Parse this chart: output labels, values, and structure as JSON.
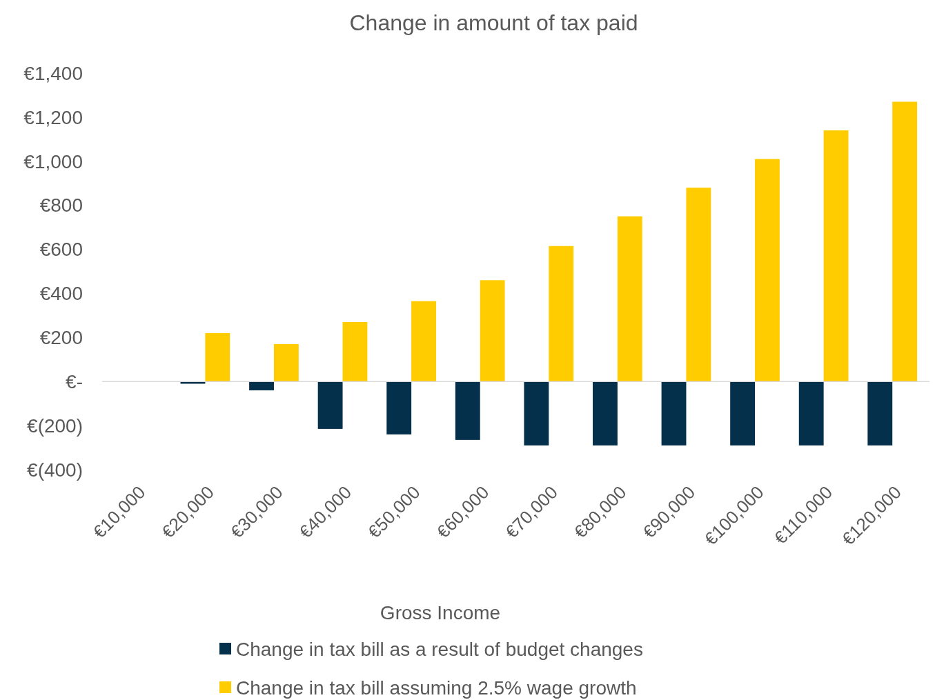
{
  "chart_data": {
    "type": "bar",
    "title": "Change in amount of tax paid",
    "xlabel": "Gross Income",
    "categories": [
      "€10,000",
      "€20,000",
      "€30,000",
      "€40,000",
      "€50,000",
      "€60,000",
      "€70,000",
      "€80,000",
      "€90,000",
      "€100,000",
      "€110,000",
      "€120,000"
    ],
    "series": [
      {
        "name": "Change in tax bill as a result of budget changes",
        "color": "#05304b",
        "values": [
          0,
          -10,
          -40,
          -215,
          -240,
          -265,
          -290,
          -290,
          -290,
          -290,
          -290,
          -290
        ]
      },
      {
        "name": "Change in tax bill assuming 2.5% wage growth",
        "color": "#ffcc00",
        "values": [
          0,
          220,
          170,
          270,
          365,
          460,
          615,
          750,
          880,
          1010,
          1140,
          1270
        ]
      }
    ],
    "ylim": [
      -400,
      1400
    ],
    "yticks": [
      {
        "value": -400,
        "label": "€(400)"
      },
      {
        "value": -200,
        "label": "€(200)"
      },
      {
        "value": 0,
        "label": "€-"
      },
      {
        "value": 200,
        "label": "€200"
      },
      {
        "value": 400,
        "label": "€400"
      },
      {
        "value": 600,
        "label": "€600"
      },
      {
        "value": 800,
        "label": "€800"
      },
      {
        "value": 1000,
        "label": "€1,000"
      },
      {
        "value": 1200,
        "label": "€1,200"
      },
      {
        "value": 1400,
        "label": "€1,400"
      }
    ],
    "legend": "bottom"
  }
}
